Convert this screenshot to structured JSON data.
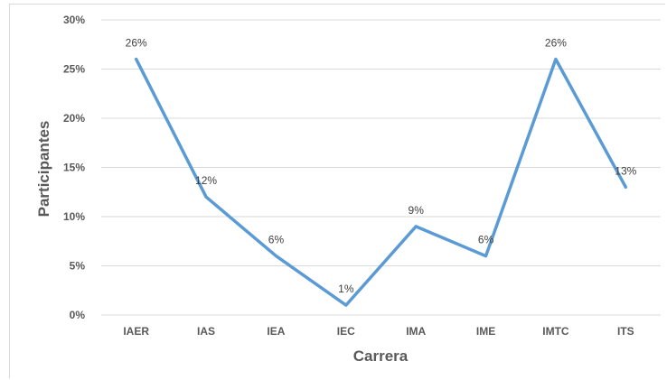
{
  "chart_data": {
    "type": "line",
    "categories": [
      "IAER",
      "IAS",
      "IEA",
      "IEC",
      "IMA",
      "IME",
      "IMTC",
      "ITS"
    ],
    "series": [
      {
        "values": [
          26,
          12,
          6,
          1,
          9,
          6,
          26,
          13
        ]
      }
    ],
    "data_labels": [
      "26%",
      "12%",
      "6%",
      "1%",
      "9%",
      "6%",
      "26%",
      "13%"
    ],
    "yticks": [
      "0%",
      "5%",
      "10%",
      "15%",
      "20%",
      "25%",
      "30%"
    ],
    "ylim": [
      0,
      30
    ],
    "xlabel": "Carrera",
    "ylabel": "Participantes",
    "grid": true,
    "line_color": "#5b9bd5"
  }
}
